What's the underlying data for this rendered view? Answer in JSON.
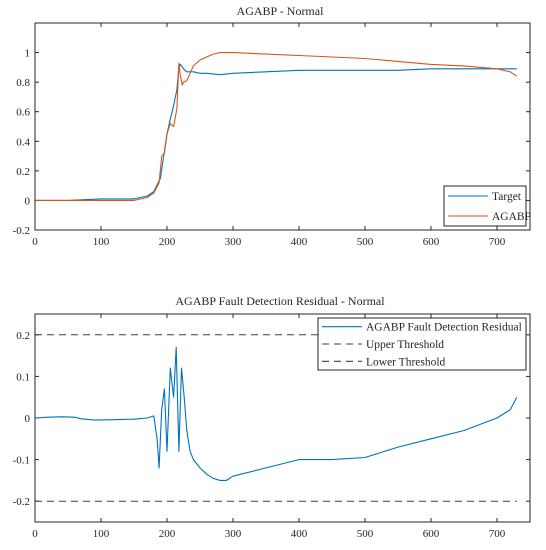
{
  "figure": {
    "background": "#ffffff"
  },
  "chart_data": [
    {
      "type": "line",
      "title": "AGABP - Normal",
      "xlabel": "",
      "ylabel": "",
      "xlim": [
        0,
        750
      ],
      "ylim": [
        -0.2,
        1.2
      ],
      "xticks": [
        0,
        100,
        200,
        300,
        400,
        500,
        600,
        700
      ],
      "yticks": [
        -0.2,
        0,
        0.2,
        0.4,
        0.6,
        0.8,
        1
      ],
      "xtick_labels": [
        "0",
        "100",
        "200",
        "300",
        "400",
        "500",
        "600",
        "700"
      ],
      "ytick_labels": [
        "-0.2",
        "0",
        "0.2",
        "0.4",
        "0.6",
        "0.8",
        "1"
      ],
      "grid": false,
      "legend_position": "bottom-right",
      "series": [
        {
          "name": "Target",
          "color": "#0072BD",
          "x": [
            0,
            50,
            100,
            150,
            170,
            180,
            190,
            195,
            200,
            205,
            210,
            215,
            218,
            220,
            222,
            225,
            230,
            240,
            250,
            260,
            280,
            300,
            350,
            400,
            450,
            500,
            550,
            600,
            650,
            700,
            730
          ],
          "y": [
            0,
            0.0,
            0.01,
            0.01,
            0.03,
            0.06,
            0.15,
            0.3,
            0.45,
            0.55,
            0.64,
            0.75,
            0.9,
            0.92,
            0.91,
            0.89,
            0.87,
            0.87,
            0.86,
            0.86,
            0.85,
            0.86,
            0.87,
            0.88,
            0.88,
            0.88,
            0.88,
            0.89,
            0.89,
            0.89,
            0.89
          ]
        },
        {
          "name": "AGABP",
          "color": "#D95319",
          "x": [
            0,
            50,
            100,
            150,
            170,
            180,
            188,
            192,
            196,
            200,
            205,
            210,
            215,
            218,
            220,
            223,
            225,
            230,
            235,
            240,
            250,
            260,
            270,
            280,
            300,
            350,
            400,
            450,
            500,
            550,
            600,
            650,
            700,
            720,
            730
          ],
          "y": [
            0,
            0.0,
            0.0,
            0.0,
            0.02,
            0.05,
            0.12,
            0.3,
            0.32,
            0.45,
            0.52,
            0.5,
            0.62,
            0.93,
            0.85,
            0.78,
            0.8,
            0.81,
            0.86,
            0.91,
            0.95,
            0.97,
            0.99,
            1.0,
            1.0,
            0.99,
            0.98,
            0.97,
            0.96,
            0.94,
            0.92,
            0.91,
            0.89,
            0.87,
            0.84
          ]
        }
      ]
    },
    {
      "type": "line",
      "title": "AGABP Fault Detection Residual - Normal",
      "xlabel": "",
      "ylabel": "",
      "xlim": [
        0,
        750
      ],
      "ylim": [
        -0.25,
        0.25
      ],
      "xticks": [
        0,
        100,
        200,
        300,
        400,
        500,
        600,
        700
      ],
      "yticks": [
        -0.2,
        -0.1,
        0,
        0.1,
        0.2
      ],
      "xtick_labels": [
        "0",
        "100",
        "200",
        "300",
        "400",
        "500",
        "600",
        "700"
      ],
      "ytick_labels": [
        "-0.2",
        "-0.1",
        "0",
        "0.1",
        "0.2"
      ],
      "grid": false,
      "legend_position": "top-right",
      "series": [
        {
          "name": "AGABP Fault Detection Residual",
          "color": "#0072BD",
          "x": [
            0,
            20,
            40,
            60,
            70,
            90,
            120,
            150,
            170,
            180,
            185,
            188,
            192,
            196,
            200,
            205,
            210,
            214,
            218,
            222,
            226,
            230,
            235,
            240,
            250,
            260,
            270,
            280,
            290,
            300,
            350,
            400,
            450,
            500,
            550,
            600,
            650,
            700,
            720,
            730
          ],
          "y": [
            0,
            0.002,
            0.003,
            0.002,
            -0.002,
            -0.005,
            -0.004,
            -0.003,
            0.0,
            0.005,
            -0.05,
            -0.12,
            0.02,
            0.07,
            -0.08,
            0.12,
            0.05,
            0.17,
            -0.08,
            0.12,
            0.05,
            -0.03,
            -0.08,
            -0.1,
            -0.12,
            -0.135,
            -0.145,
            -0.15,
            -0.15,
            -0.14,
            -0.12,
            -0.1,
            -0.1,
            -0.095,
            -0.07,
            -0.05,
            -0.03,
            0.0,
            0.02,
            0.05
          ]
        },
        {
          "name": "Upper Threshold",
          "color": "#404040",
          "x": [
            0,
            730
          ],
          "y": [
            0.2,
            0.2
          ]
        },
        {
          "name": "Lower Threshold",
          "color": "#404040",
          "x": [
            0,
            730
          ],
          "y": [
            -0.2,
            -0.2
          ]
        }
      ]
    }
  ]
}
